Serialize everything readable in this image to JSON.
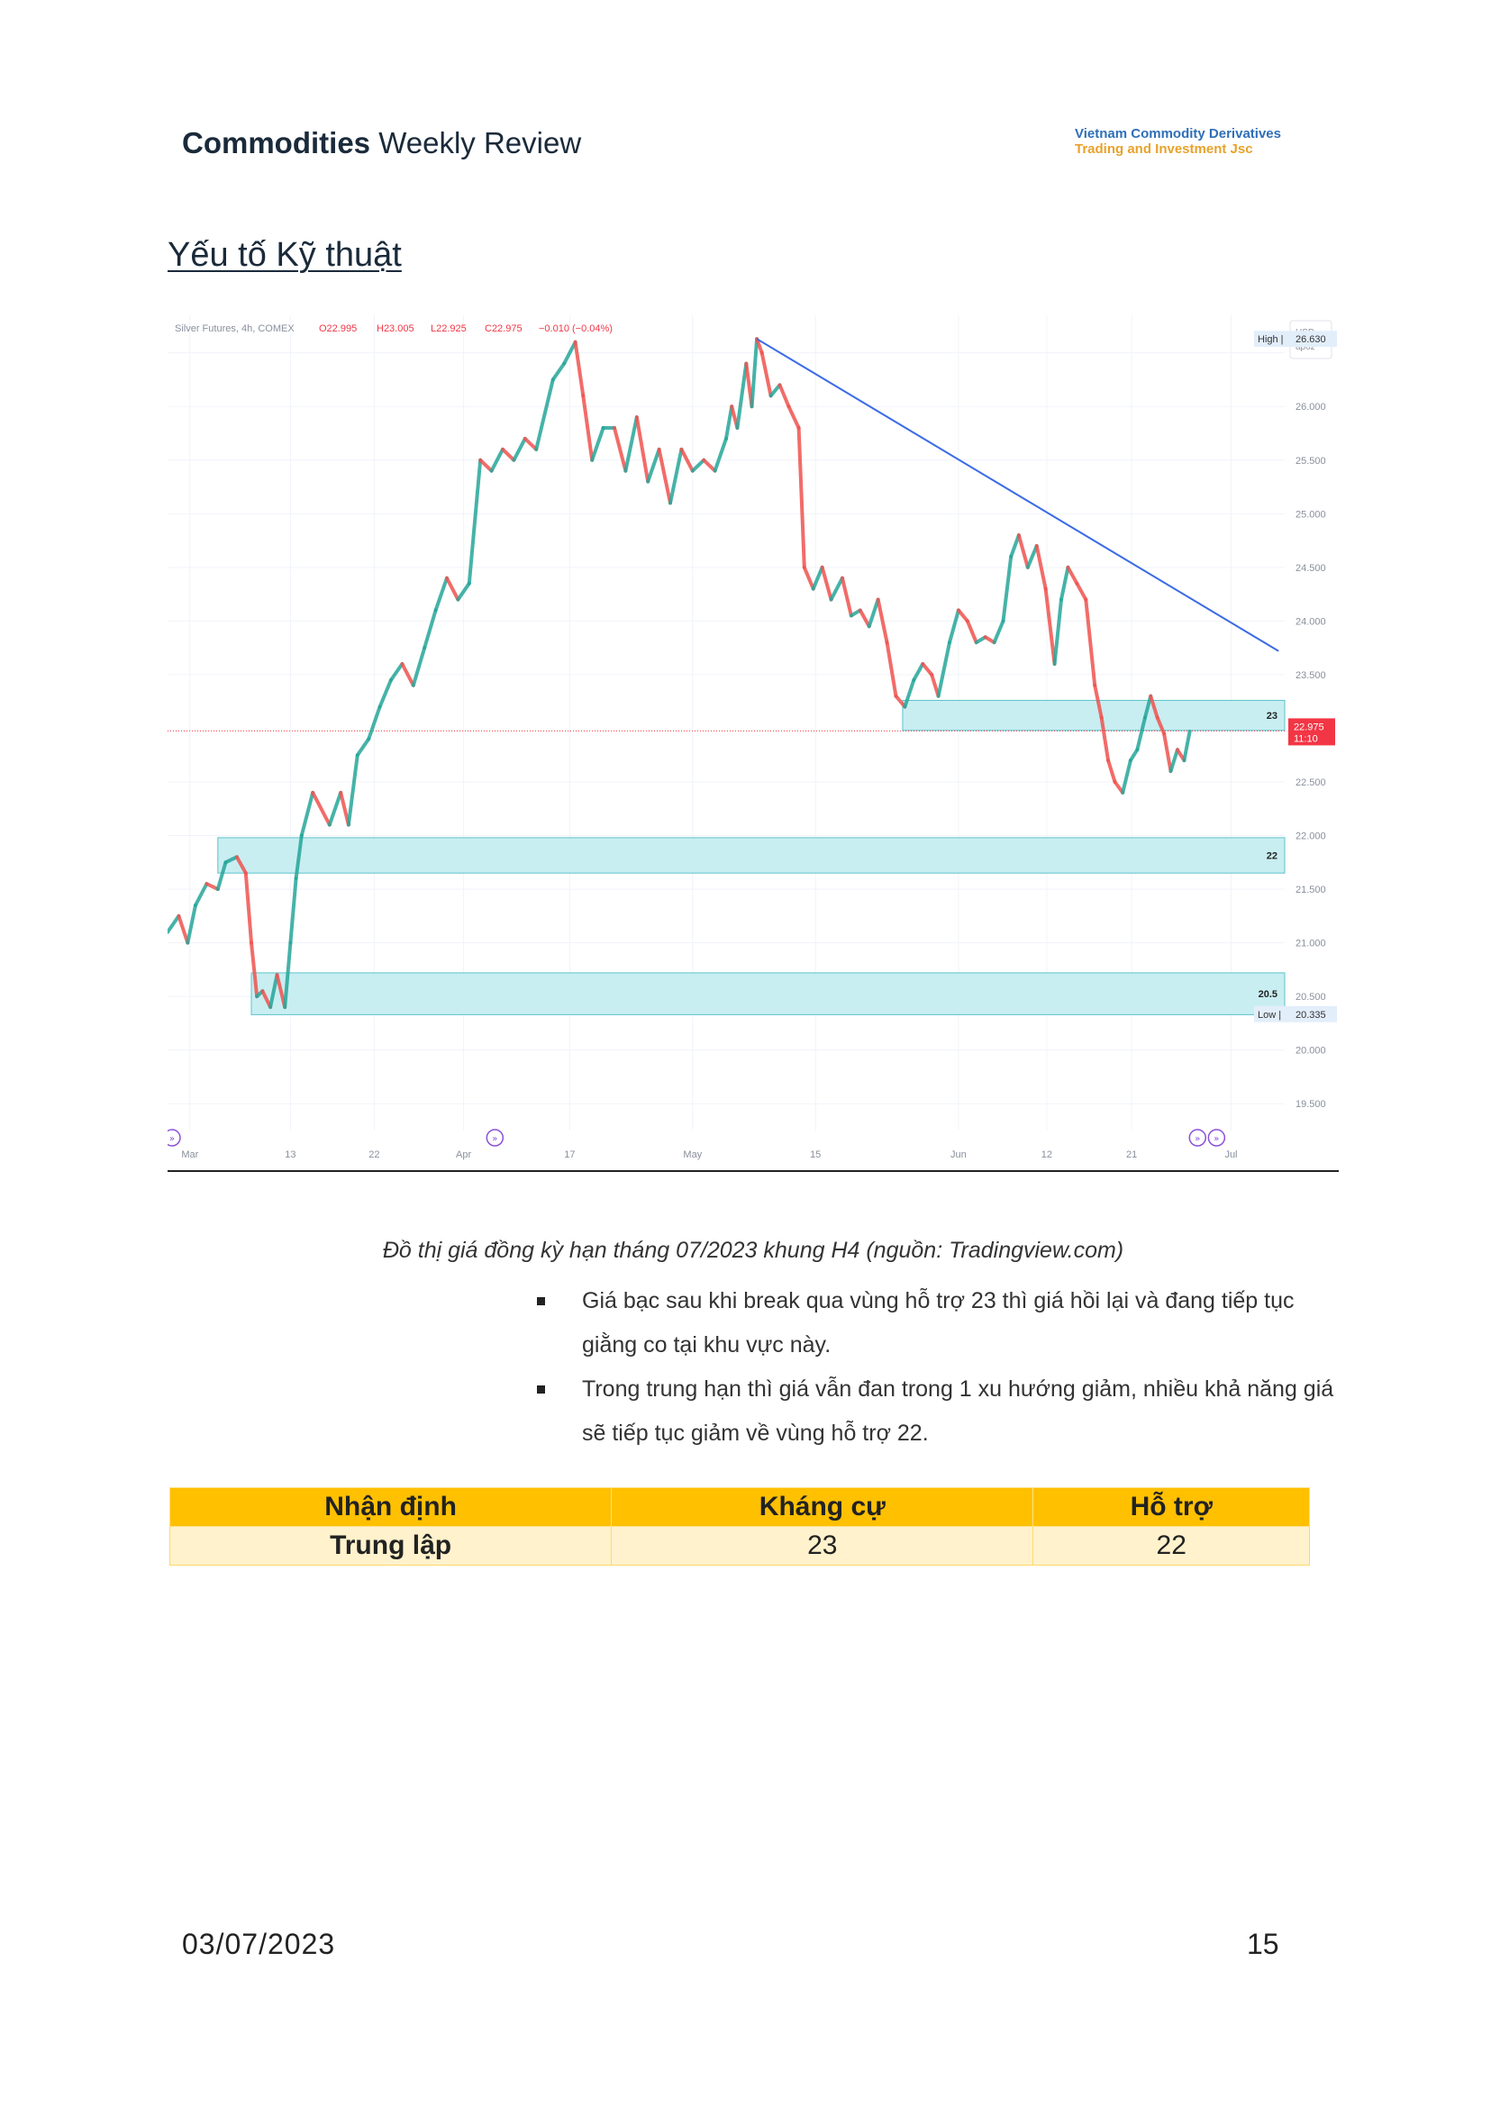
{
  "header": {
    "title_bold": "Commodities",
    "title_rest": " Weekly Review",
    "logo_line1": "Vietnam Commodity Derivatives",
    "logo_line2": "Trading and Investment Jsc"
  },
  "section_title": "Yếu tố Kỹ thuật",
  "chart_data": {
    "type": "line",
    "title": "Silver Futures, 4h, COMEX",
    "ohlc_text": {
      "o": "O22.995",
      "h": "H23.005",
      "l": "L22.925",
      "c": "C22.975",
      "chg": "−0.010 (−0.04%)"
    },
    "currency_label": "USD",
    "scale_label": "apoz",
    "ylim": [
      19.25,
      26.85
    ],
    "y_ticks": [
      "26.500",
      "26.000",
      "25.500",
      "25.000",
      "24.500",
      "24.000",
      "23.500",
      "22.500",
      "22.000",
      "21.500",
      "21.000",
      "20.500",
      "20.000",
      "19.500"
    ],
    "x_ticks": [
      "Mar",
      "13",
      "22",
      "Apr",
      "17",
      "May",
      "15",
      "Jun",
      "12",
      "21",
      "Jul"
    ],
    "high": {
      "label": "High",
      "value": "26.630"
    },
    "low": {
      "label": "Low",
      "value": "20.335"
    },
    "last_price": {
      "value": "22.975",
      "countdown": "11:10",
      "color": "#f23645"
    },
    "zones": [
      {
        "label": "23",
        "low": 22.98,
        "high": 23.26
      },
      {
        "label": "22",
        "low": 21.65,
        "high": 21.98
      },
      {
        "label": "20.5",
        "low": 20.33,
        "high": 20.72
      }
    ],
    "trendline": {
      "from": [
        0.5275,
        26.63
      ],
      "to": [
        0.9945,
        23.72
      ],
      "color": "#3b6be6"
    },
    "series": [
      {
        "values": [
          [
            0.0,
            21.1
          ],
          [
            0.01,
            21.25
          ],
          [
            0.018,
            21.0
          ],
          [
            0.025,
            21.35
          ],
          [
            0.035,
            21.55
          ],
          [
            0.045,
            21.5
          ],
          [
            0.052,
            21.75
          ],
          [
            0.062,
            21.8
          ],
          [
            0.07,
            21.65
          ],
          [
            0.075,
            21.0
          ],
          [
            0.08,
            20.5
          ],
          [
            0.085,
            20.55
          ],
          [
            0.092,
            20.4
          ],
          [
            0.098,
            20.7
          ],
          [
            0.105,
            20.4
          ],
          [
            0.11,
            21.0
          ],
          [
            0.115,
            21.6
          ],
          [
            0.12,
            22.0
          ],
          [
            0.13,
            22.4
          ],
          [
            0.145,
            22.1
          ],
          [
            0.155,
            22.4
          ],
          [
            0.162,
            22.1
          ],
          [
            0.17,
            22.75
          ],
          [
            0.18,
            22.9
          ],
          [
            0.19,
            23.2
          ],
          [
            0.2,
            23.45
          ],
          [
            0.21,
            23.6
          ],
          [
            0.22,
            23.4
          ],
          [
            0.23,
            23.75
          ],
          [
            0.24,
            24.1
          ],
          [
            0.25,
            24.4
          ],
          [
            0.26,
            24.2
          ],
          [
            0.27,
            24.35
          ],
          [
            0.28,
            25.5
          ],
          [
            0.29,
            25.4
          ],
          [
            0.3,
            25.6
          ],
          [
            0.31,
            25.5
          ],
          [
            0.32,
            25.7
          ],
          [
            0.33,
            25.6
          ],
          [
            0.345,
            26.25
          ],
          [
            0.355,
            26.4
          ],
          [
            0.365,
            26.6
          ],
          [
            0.372,
            26.1
          ],
          [
            0.38,
            25.5
          ],
          [
            0.39,
            25.8
          ],
          [
            0.4,
            25.8
          ],
          [
            0.41,
            25.4
          ],
          [
            0.42,
            25.9
          ],
          [
            0.43,
            25.3
          ],
          [
            0.44,
            25.6
          ],
          [
            0.45,
            25.1
          ],
          [
            0.46,
            25.6
          ],
          [
            0.47,
            25.4
          ],
          [
            0.48,
            25.5
          ],
          [
            0.49,
            25.4
          ],
          [
            0.5,
            25.7
          ],
          [
            0.505,
            26.0
          ],
          [
            0.51,
            25.8
          ],
          [
            0.518,
            26.4
          ],
          [
            0.523,
            26.0
          ],
          [
            0.5275,
            26.63
          ],
          [
            0.532,
            26.5
          ],
          [
            0.54,
            26.1
          ],
          [
            0.548,
            26.2
          ],
          [
            0.556,
            26.0
          ],
          [
            0.565,
            25.8
          ],
          [
            0.57,
            24.5
          ],
          [
            0.578,
            24.3
          ],
          [
            0.586,
            24.5
          ],
          [
            0.594,
            24.2
          ],
          [
            0.604,
            24.4
          ],
          [
            0.612,
            24.05
          ],
          [
            0.62,
            24.1
          ],
          [
            0.628,
            23.95
          ],
          [
            0.636,
            24.2
          ],
          [
            0.644,
            23.8
          ],
          [
            0.652,
            23.3
          ],
          [
            0.66,
            23.2
          ],
          [
            0.668,
            23.45
          ],
          [
            0.676,
            23.6
          ],
          [
            0.684,
            23.5
          ],
          [
            0.69,
            23.3
          ],
          [
            0.7,
            23.8
          ],
          [
            0.708,
            24.1
          ],
          [
            0.716,
            24.0
          ],
          [
            0.724,
            23.8
          ],
          [
            0.732,
            23.85
          ],
          [
            0.74,
            23.8
          ],
          [
            0.748,
            24.0
          ],
          [
            0.755,
            24.6
          ],
          [
            0.762,
            24.8
          ],
          [
            0.77,
            24.5
          ],
          [
            0.778,
            24.7
          ],
          [
            0.786,
            24.3
          ],
          [
            0.794,
            23.6
          ],
          [
            0.8,
            24.2
          ],
          [
            0.806,
            24.5
          ],
          [
            0.814,
            24.35
          ],
          [
            0.822,
            24.2
          ],
          [
            0.83,
            23.4
          ],
          [
            0.836,
            23.1
          ],
          [
            0.842,
            22.7
          ],
          [
            0.848,
            22.5
          ],
          [
            0.855,
            22.4
          ],
          [
            0.862,
            22.7
          ],
          [
            0.868,
            22.8
          ],
          [
            0.875,
            23.1
          ],
          [
            0.88,
            23.3
          ],
          [
            0.886,
            23.1
          ],
          [
            0.892,
            22.95
          ],
          [
            0.898,
            22.6
          ],
          [
            0.904,
            22.8
          ],
          [
            0.91,
            22.7
          ],
          [
            0.915,
            22.97
          ]
        ]
      }
    ]
  },
  "caption": "Đồ thị giá đồng kỳ hạn tháng 07/2023 khung H4 (nguồn: Tradingview.com)",
  "bullets": [
    "Giá bạc sau khi break qua vùng hỗ trợ 23 thì giá hồi lại và đang tiếp tục giằng co tại khu vực này.",
    "Trong trung hạn thì giá vẫn đan trong 1 xu hướng giảm, nhiều khả năng giá sẽ tiếp tục giảm về vùng hỗ trợ 22."
  ],
  "table": {
    "headers": [
      "Nhận định",
      "Kháng cự",
      "Hỗ trợ"
    ],
    "row": [
      "Trung lập",
      "23",
      "22"
    ]
  },
  "footer": {
    "date": "03/07/2023",
    "page": "15"
  }
}
